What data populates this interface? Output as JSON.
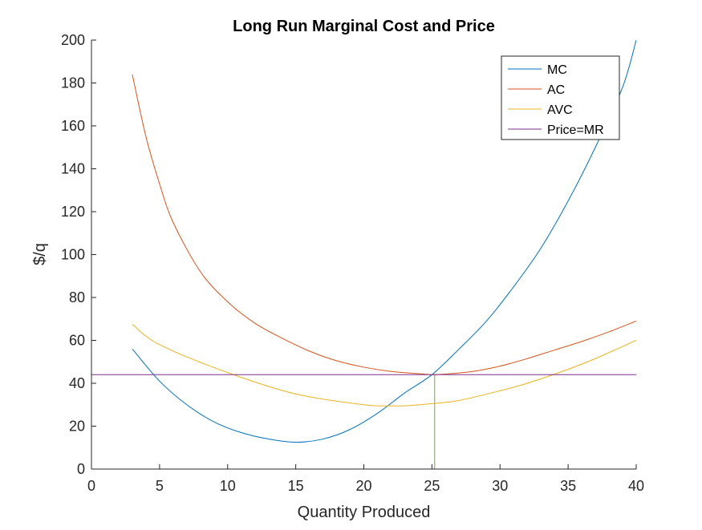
{
  "chart_data": {
    "type": "line",
    "title": "Long Run Marginal Cost and Price",
    "xlabel": "Quantity Produced",
    "ylabel": "$/q",
    "xlim": [
      0,
      40
    ],
    "ylim": [
      0,
      200
    ],
    "xticks": [
      "0",
      "5",
      "10",
      "15",
      "20",
      "25",
      "30",
      "35",
      "40"
    ],
    "yticks": [
      "0",
      "20",
      "40",
      "60",
      "80",
      "100",
      "120",
      "140",
      "160",
      "180",
      "200"
    ],
    "grid": false,
    "legend_position": "top-right",
    "series": [
      {
        "name": "MC",
        "color": "#0072BD",
        "x": [
          3,
          5,
          7,
          9,
          11,
          13,
          15,
          17,
          19,
          21,
          23,
          25,
          27,
          29,
          31,
          33,
          35,
          37,
          39,
          40
        ],
        "y": [
          56,
          41,
          30,
          22,
          17,
          14,
          12.5,
          14,
          18.5,
          26,
          35.5,
          44,
          56,
          69,
          85,
          103,
          125,
          150,
          178,
          200
        ]
      },
      {
        "name": "AC",
        "color": "#D95319",
        "x": [
          3,
          4,
          5,
          6,
          8,
          10,
          12,
          14,
          16,
          18,
          20,
          22,
          24,
          25,
          26,
          28,
          30,
          32,
          34,
          36,
          38,
          40
        ],
        "y": [
          184,
          155,
          133,
          115,
          92,
          78,
          68,
          61,
          55,
          50.5,
          47.5,
          45.5,
          44.5,
          44,
          44.3,
          45.5,
          48,
          51.5,
          55.5,
          59.5,
          64,
          69
        ]
      },
      {
        "name": "AVC",
        "color": "#EDB120",
        "x": [
          3,
          5,
          10,
          15,
          20,
          22,
          23,
          25,
          27,
          30,
          32,
          35,
          37,
          40
        ],
        "y": [
          67.5,
          58,
          45,
          35,
          30,
          29.5,
          29.5,
          30.5,
          32,
          36.5,
          40,
          46.5,
          51.5,
          60
        ]
      },
      {
        "name": "Price=MR",
        "color": "#7E2F8E",
        "x": [
          0,
          40
        ],
        "y": [
          44,
          44
        ]
      }
    ],
    "annotations": [
      {
        "type": "vline",
        "x": 25.2,
        "y_from": 0,
        "y_to": 44,
        "color": "#77AC30"
      }
    ]
  }
}
